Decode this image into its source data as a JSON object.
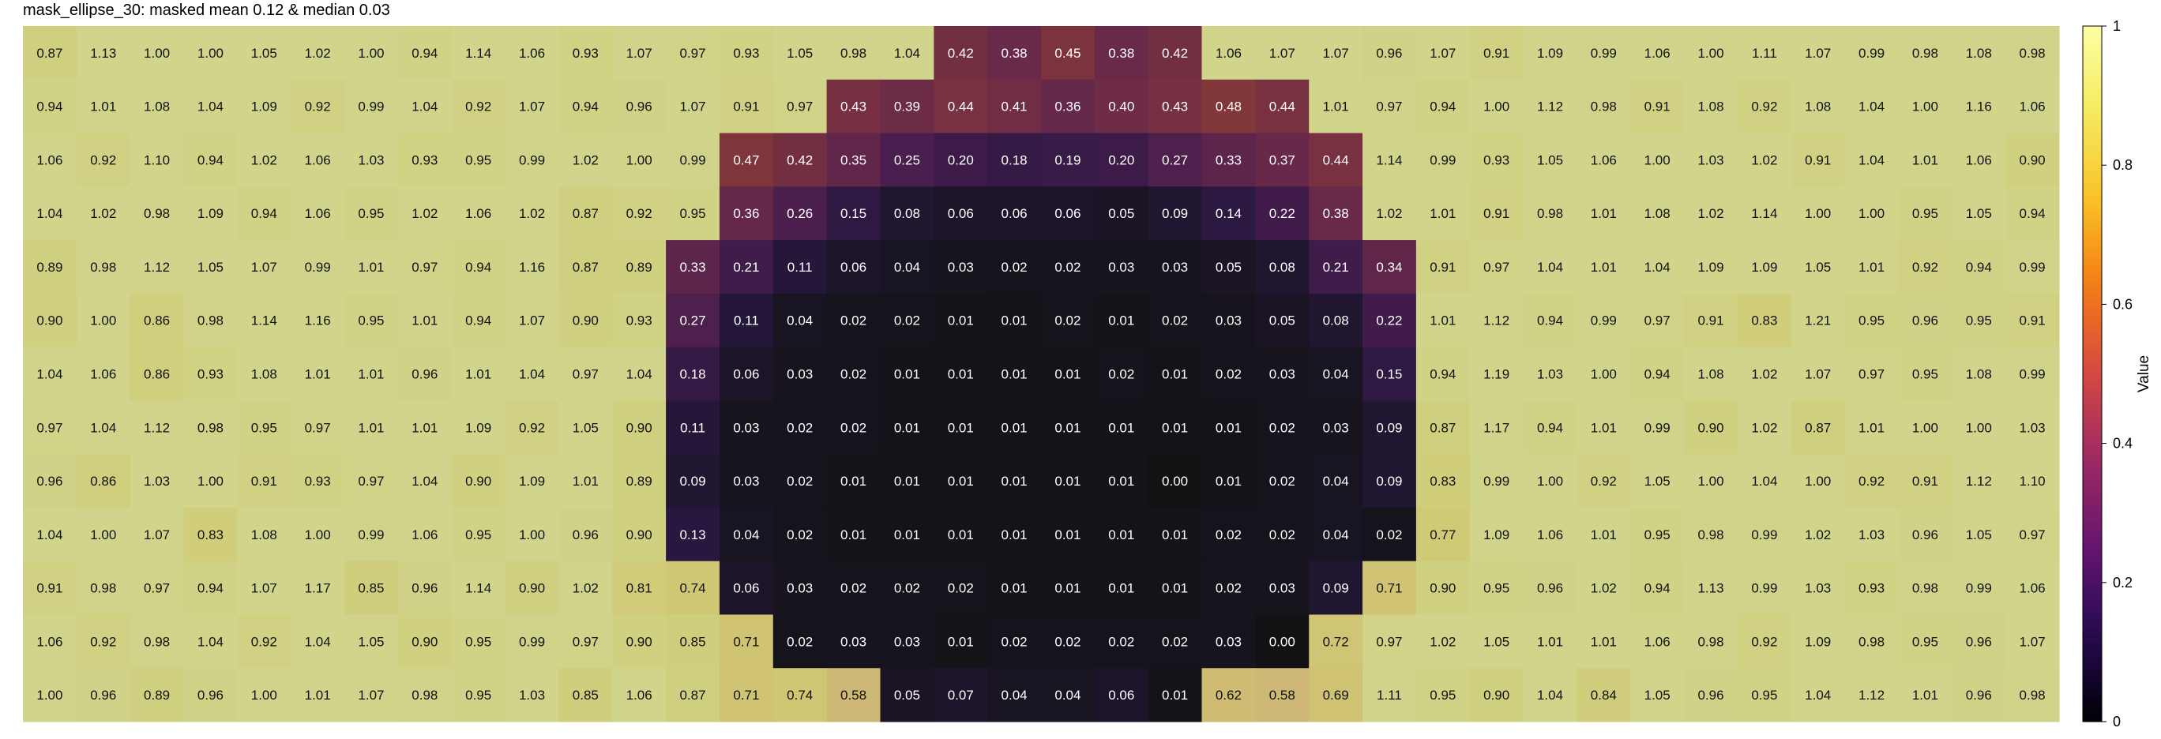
{
  "chart_data": {
    "type": "heatmap",
    "title": "mask_ellipse_30: masked mean 0.12 & median 0.03",
    "colorbar": {
      "label": "Value",
      "ticks": [
        "0",
        "0.2",
        "0.4",
        "0.6",
        "0.8",
        "1"
      ],
      "tick_values": [
        0,
        0.2,
        0.4,
        0.6,
        0.8,
        1.0
      ],
      "range": [
        0,
        1
      ],
      "colormap": "inferno"
    },
    "mask_overlay": {
      "description_color": "#c7ca86",
      "opacity": 0.82
    },
    "cell_label_format": "2 decimals",
    "rows": 13,
    "cols": 38,
    "values": [
      [
        0.87,
        1.13,
        1.0,
        1.0,
        1.05,
        1.02,
        1.0,
        0.94,
        1.14,
        1.06,
        0.93,
        1.07,
        0.97,
        0.93,
        1.05,
        0.98,
        1.04,
        0.42,
        0.38,
        0.45,
        0.38,
        0.42,
        1.06,
        1.07,
        1.07,
        0.96,
        1.07,
        0.91,
        1.09,
        0.99,
        1.06,
        1.0,
        1.11,
        1.07,
        0.99,
        0.98,
        1.08,
        0.98
      ],
      [
        0.94,
        1.01,
        1.08,
        1.04,
        1.09,
        0.92,
        0.99,
        1.04,
        0.92,
        1.07,
        0.94,
        0.96,
        1.07,
        0.91,
        0.97,
        0.43,
        0.39,
        0.44,
        0.41,
        0.36,
        0.4,
        0.43,
        0.48,
        0.44,
        1.01,
        0.97,
        0.94,
        1.0,
        1.12,
        0.98,
        0.91,
        1.08,
        0.92,
        1.08,
        1.04,
        1.0,
        1.16,
        1.06
      ],
      [
        1.06,
        0.92,
        1.1,
        0.94,
        1.02,
        1.06,
        1.03,
        0.93,
        0.95,
        0.99,
        1.02,
        1.0,
        0.99,
        0.47,
        0.42,
        0.35,
        0.25,
        0.2,
        0.18,
        0.19,
        0.2,
        0.27,
        0.33,
        0.37,
        0.44,
        1.14,
        0.99,
        0.93,
        1.05,
        1.06,
        1.0,
        1.03,
        1.02,
        0.91,
        1.04,
        1.01,
        1.06,
        0.9
      ],
      [
        1.04,
        1.02,
        0.98,
        1.09,
        0.94,
        1.06,
        0.95,
        1.02,
        1.06,
        1.02,
        0.87,
        0.92,
        0.95,
        0.36,
        0.26,
        0.15,
        0.08,
        0.06,
        0.06,
        0.06,
        0.05,
        0.09,
        0.14,
        0.22,
        0.38,
        1.02,
        1.01,
        0.91,
        0.98,
        1.01,
        1.08,
        1.02,
        1.14,
        1.0,
        1.0,
        0.95,
        1.05,
        0.94
      ],
      [
        0.89,
        0.98,
        1.12,
        1.05,
        1.07,
        0.99,
        1.01,
        0.97,
        0.94,
        1.16,
        0.87,
        0.89,
        0.33,
        0.21,
        0.11,
        0.06,
        0.04,
        0.03,
        0.02,
        0.02,
        0.03,
        0.03,
        0.05,
        0.08,
        0.21,
        0.34,
        0.91,
        0.97,
        1.04,
        1.01,
        1.04,
        1.09,
        1.09,
        1.05,
        1.01,
        0.92,
        0.94,
        0.99
      ],
      [
        0.9,
        1.0,
        0.86,
        0.98,
        1.14,
        1.16,
        0.95,
        1.01,
        0.94,
        1.07,
        0.9,
        0.93,
        0.27,
        0.11,
        0.04,
        0.02,
        0.02,
        0.01,
        0.01,
        0.02,
        0.01,
        0.02,
        0.03,
        0.05,
        0.08,
        0.22,
        1.01,
        1.12,
        0.94,
        0.99,
        0.97,
        0.91,
        0.83,
        1.21,
        0.95,
        0.96,
        0.95,
        0.91
      ],
      [
        1.04,
        1.06,
        0.86,
        0.93,
        1.08,
        1.01,
        1.01,
        0.96,
        1.01,
        1.04,
        0.97,
        1.04,
        0.18,
        0.06,
        0.03,
        0.02,
        0.01,
        0.01,
        0.01,
        0.01,
        0.02,
        0.01,
        0.02,
        0.03,
        0.04,
        0.15,
        0.94,
        1.19,
        1.03,
        1.0,
        0.94,
        1.08,
        1.02,
        1.07,
        0.97,
        0.95,
        1.08,
        0.99
      ],
      [
        0.97,
        1.04,
        1.12,
        0.98,
        0.95,
        0.97,
        1.01,
        1.01,
        1.09,
        0.92,
        1.05,
        0.9,
        0.11,
        0.03,
        0.02,
        0.02,
        0.01,
        0.01,
        0.01,
        0.01,
        0.01,
        0.01,
        0.01,
        0.02,
        0.03,
        0.09,
        0.87,
        1.17,
        0.94,
        1.01,
        0.99,
        0.9,
        1.02,
        0.87,
        1.01,
        1.0,
        1.0,
        1.03
      ],
      [
        0.96,
        0.86,
        1.03,
        1.0,
        0.91,
        0.93,
        0.97,
        1.04,
        0.9,
        1.09,
        1.01,
        0.89,
        0.09,
        0.03,
        0.02,
        0.01,
        0.01,
        0.01,
        0.01,
        0.01,
        0.01,
        0.0,
        0.01,
        0.02,
        0.04,
        0.09,
        0.83,
        0.99,
        1.0,
        0.92,
        1.05,
        1.0,
        1.04,
        1.0,
        0.92,
        0.91,
        1.12,
        1.1
      ],
      [
        1.04,
        1.0,
        1.07,
        0.83,
        1.08,
        1.0,
        0.99,
        1.06,
        0.95,
        1.0,
        0.96,
        0.9,
        0.13,
        0.04,
        0.02,
        0.01,
        0.01,
        0.01,
        0.01,
        0.01,
        0.01,
        0.01,
        0.02,
        0.02,
        0.04,
        0.02,
        0.77,
        1.09,
        1.06,
        1.01,
        0.95,
        0.98,
        0.99,
        1.02,
        1.03,
        0.96,
        1.05,
        0.97
      ],
      [
        0.91,
        0.98,
        0.97,
        0.94,
        1.07,
        1.17,
        0.85,
        0.96,
        1.14,
        0.9,
        1.02,
        0.81,
        0.74,
        0.06,
        0.03,
        0.02,
        0.02,
        0.02,
        0.01,
        0.01,
        0.01,
        0.01,
        0.02,
        0.03,
        0.09,
        0.71,
        0.9,
        0.95,
        0.96,
        1.02,
        0.94,
        1.13,
        0.99,
        1.03,
        0.93,
        0.98,
        0.99,
        1.06
      ],
      [
        1.06,
        0.92,
        0.98,
        1.04,
        0.92,
        1.04,
        1.05,
        0.9,
        0.95,
        0.99,
        0.97,
        0.9,
        0.85,
        0.71,
        0.02,
        0.03,
        0.03,
        0.01,
        0.02,
        0.02,
        0.02,
        0.02,
        0.03,
        0.0,
        0.72,
        0.97,
        1.02,
        1.05,
        1.01,
        1.01,
        1.06,
        0.98,
        0.92,
        1.09,
        0.98,
        0.95,
        0.96,
        1.07
      ],
      [
        1.0,
        0.96,
        0.89,
        0.96,
        1.0,
        1.01,
        1.07,
        0.98,
        0.95,
        1.03,
        0.85,
        1.06,
        0.87,
        0.71,
        0.74,
        0.58,
        0.05,
        0.07,
        0.04,
        0.04,
        0.06,
        0.01,
        0.62,
        0.58,
        0.69,
        1.11,
        0.95,
        0.9,
        1.04,
        0.84,
        1.05,
        0.96,
        0.95,
        1.04,
        1.12,
        1.01,
        0.96,
        0.98
      ]
    ],
    "masked": [
      [
        0,
        0,
        0,
        0,
        0,
        0,
        0,
        0,
        0,
        0,
        0,
        0,
        0,
        0,
        0,
        0,
        0,
        1,
        1,
        1,
        1,
        1,
        0,
        0,
        0,
        0,
        0,
        0,
        0,
        0,
        0,
        0,
        0,
        0,
        0,
        0,
        0,
        0
      ],
      [
        0,
        0,
        0,
        0,
        0,
        0,
        0,
        0,
        0,
        0,
        0,
        0,
        0,
        0,
        0,
        1,
        1,
        1,
        1,
        1,
        1,
        1,
        1,
        1,
        0,
        0,
        0,
        0,
        0,
        0,
        0,
        0,
        0,
        0,
        0,
        0,
        0,
        0
      ],
      [
        0,
        0,
        0,
        0,
        0,
        0,
        0,
        0,
        0,
        0,
        0,
        0,
        0,
        1,
        1,
        1,
        1,
        1,
        1,
        1,
        1,
        1,
        1,
        1,
        1,
        0,
        0,
        0,
        0,
        0,
        0,
        0,
        0,
        0,
        0,
        0,
        0,
        0
      ],
      [
        0,
        0,
        0,
        0,
        0,
        0,
        0,
        0,
        0,
        0,
        0,
        0,
        0,
        1,
        1,
        1,
        1,
        1,
        1,
        1,
        1,
        1,
        1,
        1,
        1,
        0,
        0,
        0,
        0,
        0,
        0,
        0,
        0,
        0,
        0,
        0,
        0,
        0
      ],
      [
        0,
        0,
        0,
        0,
        0,
        0,
        0,
        0,
        0,
        0,
        0,
        0,
        1,
        1,
        1,
        1,
        1,
        1,
        1,
        1,
        1,
        1,
        1,
        1,
        1,
        1,
        0,
        0,
        0,
        0,
        0,
        0,
        0,
        0,
        0,
        0,
        0,
        0
      ],
      [
        0,
        0,
        0,
        0,
        0,
        0,
        0,
        0,
        0,
        0,
        0,
        0,
        1,
        1,
        1,
        1,
        1,
        1,
        1,
        1,
        1,
        1,
        1,
        1,
        1,
        1,
        0,
        0,
        0,
        0,
        0,
        0,
        0,
        0,
        0,
        0,
        0,
        0
      ],
      [
        0,
        0,
        0,
        0,
        0,
        0,
        0,
        0,
        0,
        0,
        0,
        0,
        1,
        1,
        1,
        1,
        1,
        1,
        1,
        1,
        1,
        1,
        1,
        1,
        1,
        1,
        0,
        0,
        0,
        0,
        0,
        0,
        0,
        0,
        0,
        0,
        0,
        0
      ],
      [
        0,
        0,
        0,
        0,
        0,
        0,
        0,
        0,
        0,
        0,
        0,
        0,
        1,
        1,
        1,
        1,
        1,
        1,
        1,
        1,
        1,
        1,
        1,
        1,
        1,
        1,
        0,
        0,
        0,
        0,
        0,
        0,
        0,
        0,
        0,
        0,
        0,
        0
      ],
      [
        0,
        0,
        0,
        0,
        0,
        0,
        0,
        0,
        0,
        0,
        0,
        0,
        1,
        1,
        1,
        1,
        1,
        1,
        1,
        1,
        1,
        1,
        1,
        1,
        1,
        1,
        0,
        0,
        0,
        0,
        0,
        0,
        0,
        0,
        0,
        0,
        0,
        0
      ],
      [
        0,
        0,
        0,
        0,
        0,
        0,
        0,
        0,
        0,
        0,
        0,
        0,
        1,
        1,
        1,
        1,
        1,
        1,
        1,
        1,
        1,
        1,
        1,
        1,
        1,
        1,
        0,
        0,
        0,
        0,
        0,
        0,
        0,
        0,
        0,
        0,
        0,
        0
      ],
      [
        0,
        0,
        0,
        0,
        0,
        0,
        0,
        0,
        0,
        0,
        0,
        0,
        0,
        1,
        1,
        1,
        1,
        1,
        1,
        1,
        1,
        1,
        1,
        1,
        1,
        0,
        0,
        0,
        0,
        0,
        0,
        0,
        0,
        0,
        0,
        0,
        0,
        0
      ],
      [
        0,
        0,
        0,
        0,
        0,
        0,
        0,
        0,
        0,
        0,
        0,
        0,
        0,
        0,
        1,
        1,
        1,
        1,
        1,
        1,
        1,
        1,
        1,
        1,
        0,
        0,
        0,
        0,
        0,
        0,
        0,
        0,
        0,
        0,
        0,
        0,
        0,
        0
      ],
      [
        0,
        0,
        0,
        0,
        0,
        0,
        0,
        0,
        0,
        0,
        0,
        0,
        0,
        0,
        0,
        0,
        1,
        1,
        1,
        1,
        1,
        1,
        0,
        0,
        0,
        0,
        0,
        0,
        0,
        0,
        0,
        0,
        0,
        0,
        0,
        0,
        0,
        0
      ]
    ]
  }
}
